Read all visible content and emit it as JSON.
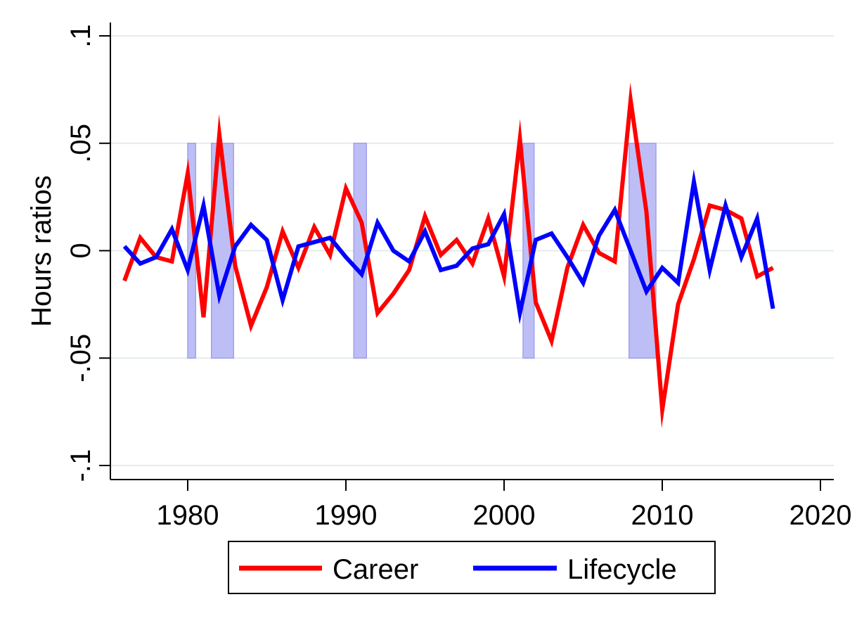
{
  "chart_data": {
    "type": "line",
    "title": "",
    "xlabel": "",
    "ylabel": "Hours ratios",
    "xlim": [
      1976,
      2020
    ],
    "ylim": [
      -0.1,
      0.1
    ],
    "x_ticks": [
      1980,
      1990,
      2000,
      2010,
      2020
    ],
    "x_tick_labels": [
      "1980",
      "1990",
      "2000",
      "2010",
      "2020"
    ],
    "y_ticks": [
      -0.1,
      -0.05,
      0,
      0.05,
      0.1
    ],
    "y_tick_labels": [
      "-.1",
      "-.05",
      "0",
      ".05",
      ".1"
    ],
    "grid": true,
    "legend_position": "bottom",
    "x": [
      1976,
      1977,
      1978,
      1979,
      1980,
      1981,
      1982,
      1983,
      1984,
      1985,
      1986,
      1987,
      1988,
      1989,
      1990,
      1991,
      1992,
      1993,
      1994,
      1995,
      1996,
      1997,
      1998,
      1999,
      2000,
      2001,
      2002,
      2003,
      2004,
      2005,
      2006,
      2007,
      2008,
      2009,
      2010,
      2011,
      2012,
      2013,
      2014,
      2015,
      2016,
      2017
    ],
    "series": [
      {
        "name": "Career",
        "color": "#ff0000",
        "values": [
          -0.014,
          0.006,
          -0.003,
          -0.005,
          0.036,
          -0.031,
          0.054,
          -0.007,
          -0.035,
          -0.017,
          0.009,
          -0.008,
          0.011,
          -0.002,
          0.029,
          0.013,
          -0.029,
          -0.02,
          -0.009,
          0.016,
          -0.002,
          0.005,
          -0.006,
          0.015,
          -0.012,
          0.052,
          -0.024,
          -0.042,
          -0.008,
          0.012,
          -0.001,
          -0.005,
          0.07,
          0.018,
          -0.074,
          -0.025,
          -0.004,
          0.021,
          0.019,
          0.015,
          -0.012,
          -0.008
        ]
      },
      {
        "name": "Lifecycle",
        "color": "#0000ff",
        "values": [
          0.002,
          -0.006,
          -0.003,
          0.01,
          -0.009,
          0.021,
          -0.021,
          0.002,
          0.012,
          0.005,
          -0.023,
          0.002,
          0.004,
          0.006,
          -0.003,
          -0.011,
          0.013,
          0.0,
          -0.005,
          0.009,
          -0.009,
          -0.007,
          0.001,
          0.003,
          0.017,
          -0.029,
          0.005,
          0.008,
          -0.003,
          -0.015,
          0.007,
          0.019,
          0.0,
          -0.019,
          -0.008,
          -0.015,
          0.032,
          -0.009,
          0.021,
          -0.003,
          0.015,
          -0.027
        ]
      }
    ],
    "recession_bands": [
      {
        "start": 1980.0,
        "end": 1980.5,
        "low": -0.05,
        "high": 0.05
      },
      {
        "start": 1981.5,
        "end": 1982.9,
        "low": -0.05,
        "high": 0.05
      },
      {
        "start": 1990.5,
        "end": 1991.3,
        "low": -0.05,
        "high": 0.05
      },
      {
        "start": 2001.2,
        "end": 2001.9,
        "low": -0.05,
        "high": 0.05
      },
      {
        "start": 2007.9,
        "end": 2009.6,
        "low": -0.05,
        "high": 0.05
      }
    ],
    "band_color": "#bbbbf5",
    "band_edge_color": "#a0a0ee",
    "grid_color": "#e3ecec"
  }
}
